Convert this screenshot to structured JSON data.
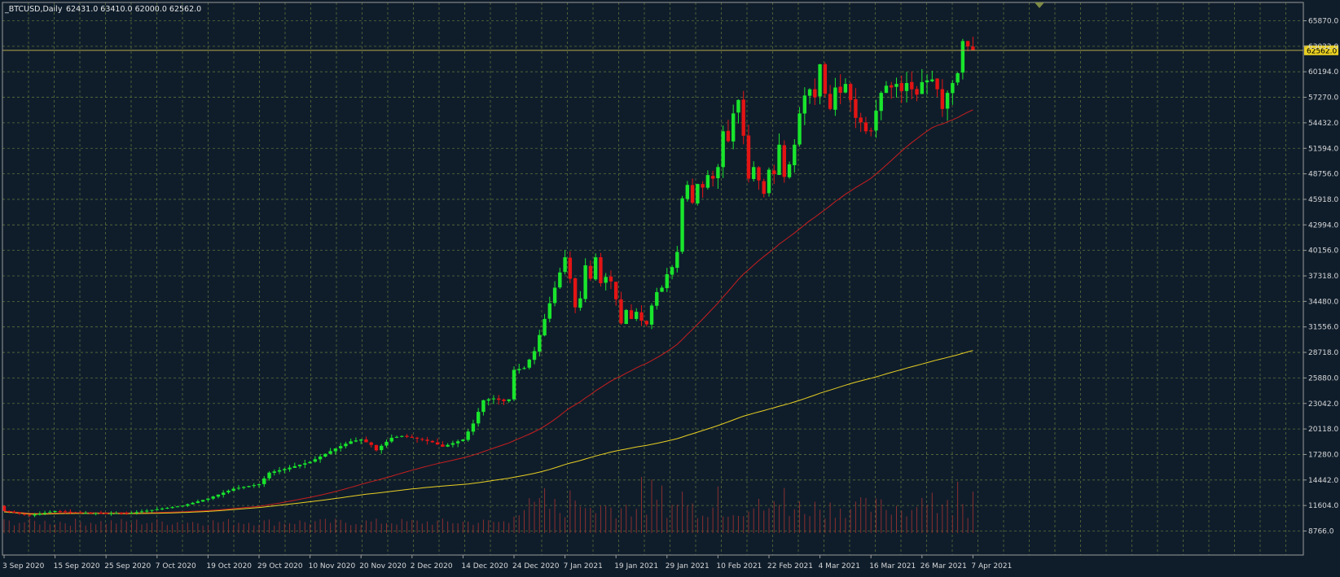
{
  "header": {
    "symbol": "_BTCUSD,Daily",
    "ohlc": "62431.0 63410.0 62000.0 62562.0"
  },
  "colors": {
    "background": "#0f1d2b",
    "grid": "#5b6e3a",
    "frame": "#9a9a9a",
    "bull": "#19e52c",
    "bear": "#e31414",
    "ma_short": "#c81e1e",
    "ma_long": "#e8cf22",
    "volume": "#8a2f2f",
    "price_line": "#b8a94e",
    "price_tag": "#e8cf22"
  },
  "chart_data": {
    "type": "candlestick",
    "ylim": [
      8766.0,
      67290.0
    ],
    "y_ticks": [
      "65870.0",
      "63032.0",
      "60194.0",
      "57270.0",
      "54432.0",
      "51594.0",
      "48756.0",
      "45918.0",
      "42994.0",
      "40156.0",
      "37318.0",
      "34480.0",
      "31556.0",
      "28718.0",
      "25880.0",
      "23042.0",
      "20118.0",
      "17280.0",
      "14442.0",
      "11604.0",
      "8766.0"
    ],
    "x_ticks": [
      "3 Sep 2020",
      "15 Sep 2020",
      "25 Sep 2020",
      "7 Oct 2020",
      "19 Oct 2020",
      "29 Oct 2020",
      "10 Nov 2020",
      "20 Nov 2020",
      "2 Dec 2020",
      "14 Dec 2020",
      "24 Dec 2020",
      "7 Jan 2021",
      "19 Jan 2021",
      "29 Jan 2021",
      "10 Feb 2021",
      "22 Feb 2021",
      "4 Mar 2021",
      "16 Mar 2021",
      "26 Mar 2021",
      "7 Apr 2021"
    ],
    "x_tick_index": [
      0,
      10,
      20,
      30,
      40,
      50,
      60,
      70,
      80,
      90,
      100,
      110,
      120,
      130,
      140,
      150,
      160,
      170,
      180,
      190
    ],
    "last_price": 62562.0,
    "last_price_label": "62562.0",
    "anchors_close": [
      [
        0,
        11000
      ],
      [
        5,
        10500
      ],
      [
        10,
        11000
      ],
      [
        15,
        10800
      ],
      [
        20,
        10750
      ],
      [
        25,
        10800
      ],
      [
        30,
        11200
      ],
      [
        35,
        11600
      ],
      [
        40,
        12400
      ],
      [
        45,
        13500
      ],
      [
        50,
        14000
      ],
      [
        52,
        15300
      ],
      [
        55,
        15700
      ],
      [
        60,
        16500
      ],
      [
        65,
        18000
      ],
      [
        68,
        18800
      ],
      [
        70,
        19000
      ],
      [
        72,
        18400
      ],
      [
        73,
        17800
      ],
      [
        74,
        18300
      ],
      [
        76,
        19200
      ],
      [
        78,
        19400
      ],
      [
        80,
        19200
      ],
      [
        82,
        19000
      ],
      [
        84,
        18700
      ],
      [
        86,
        18200
      ],
      [
        88,
        18600
      ],
      [
        90,
        19000
      ],
      [
        92,
        20800
      ],
      [
        94,
        23400
      ],
      [
        96,
        23600
      ],
      [
        98,
        23300
      ],
      [
        99,
        23500
      ],
      [
        100,
        26800
      ],
      [
        102,
        27000
      ],
      [
        104,
        28900
      ],
      [
        106,
        32500
      ],
      [
        108,
        36000
      ],
      [
        110,
        39400
      ],
      [
        111,
        37000
      ],
      [
        112,
        33800
      ],
      [
        113,
        34800
      ],
      [
        114,
        38500
      ],
      [
        115,
        37000
      ],
      [
        116,
        39400
      ],
      [
        117,
        36500
      ],
      [
        118,
        37200
      ],
      [
        119,
        36700
      ],
      [
        120,
        34700
      ],
      [
        121,
        32000
      ],
      [
        122,
        33500
      ],
      [
        123,
        32500
      ],
      [
        124,
        33300
      ],
      [
        125,
        32300
      ],
      [
        126,
        31900
      ],
      [
        127,
        34000
      ],
      [
        128,
        35500
      ],
      [
        129,
        36000
      ],
      [
        130,
        37500
      ],
      [
        131,
        38300
      ],
      [
        132,
        40000
      ],
      [
        133,
        46000
      ],
      [
        134,
        47500
      ],
      [
        135,
        45500
      ],
      [
        136,
        47600
      ],
      [
        137,
        47200
      ],
      [
        138,
        48600
      ],
      [
        139,
        48200
      ],
      [
        140,
        49500
      ],
      [
        141,
        53500
      ],
      [
        142,
        52400
      ],
      [
        143,
        55500
      ],
      [
        144,
        57000
      ],
      [
        145,
        53000
      ],
      [
        146,
        48200
      ],
      [
        147,
        49500
      ],
      [
        148,
        48000
      ],
      [
        149,
        46500
      ],
      [
        150,
        49200
      ],
      [
        151,
        48700
      ],
      [
        152,
        52000
      ],
      [
        153,
        48400
      ],
      [
        154,
        49800
      ],
      [
        155,
        52000
      ],
      [
        156,
        55500
      ],
      [
        157,
        57500
      ],
      [
        158,
        58200
      ],
      [
        159,
        57300
      ],
      [
        160,
        61000
      ],
      [
        161,
        57700
      ],
      [
        162,
        56000
      ],
      [
        163,
        58400
      ],
      [
        164,
        57800
      ],
      [
        165,
        58800
      ],
      [
        166,
        57000
      ],
      [
        167,
        55000
      ],
      [
        168,
        54500
      ],
      [
        169,
        53500
      ],
      [
        170,
        53500
      ],
      [
        171,
        55800
      ],
      [
        172,
        57800
      ],
      [
        173,
        58600
      ],
      [
        174,
        58400
      ],
      [
        175,
        58800
      ],
      [
        176,
        58000
      ],
      [
        177,
        58900
      ],
      [
        178,
        58200
      ],
      [
        179,
        57600
      ],
      [
        180,
        59000
      ],
      [
        181,
        59200
      ],
      [
        182,
        59300
      ],
      [
        183,
        58200
      ],
      [
        184,
        56000
      ],
      [
        185,
        57800
      ],
      [
        186,
        58900
      ],
      [
        187,
        60000
      ],
      [
        188,
        63600
      ],
      [
        189,
        63000
      ],
      [
        190,
        62562
      ]
    ],
    "series": [
      {
        "name": "",
        "kind": "moving-average-short"
      },
      {
        "name": "",
        "kind": "moving-average-long"
      }
    ]
  }
}
